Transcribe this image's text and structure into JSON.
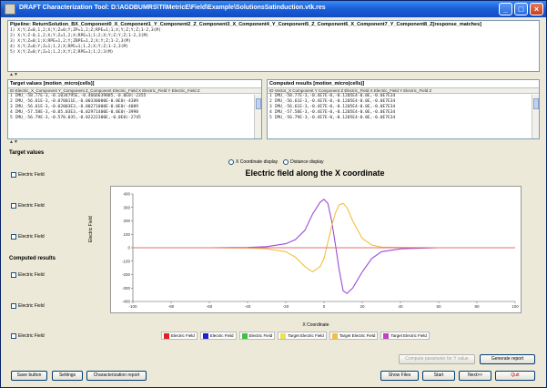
{
  "window": {
    "title": "DRAFT Characterization Tool: D:\\AGDBUMRS\\TI\\MetricE\\Field\\Example\\SolutionsSatinduction.vtk.res",
    "minimize": "_",
    "maximize": "□",
    "close": "×"
  },
  "pipeline": {
    "header": "Pipeline: ReturnSolution_BX_Component0_X_Component1_Y_Component2_Z_Component3_X_Component4_Y_Component5_Z_Component6_X_Component7_Y_Component8_Z[response_matches]",
    "rows": [
      "1) X;Y;Z=0,1,2;X;Y;Z=0;Y;ZP=1,2;Z;RPE=1;1;X;Y;Z;Y;Z;1-2,3(M)",
      "2) X;Y;Z-0,1,2;X;Y;Z=1,2;X;RPE=1;1;2;X;Y;Z;Y;Z;1-2,3(M)",
      "3) X;Y;Z=0;1;X;RPE=1,2;Y;ZBPE=1,2;X;Y;Z;1-2,3(M)",
      "4) X;Y;Z=0;Y;Z=1;1,2;X;RPE=1;1,2;X;Y;Z;1-2,3(M)",
      "5) X;Y;Z=0;Y;Z=1;1,2;X;Y;Z;RPE=1;1;2;3(M)"
    ]
  },
  "target_values": {
    "header": "Target values [motion_micro(cells)]",
    "subheader": "ID Electric_X_Component Y_Component Z_Component Electric_Field X Electric_Field Y Electric_Field Z",
    "rows": [
      "1 IMU_-58.77E-3,-0.1034795E,-0.4666639885,-0.0E0(-2355",
      "2 IMU_-56.61E-3,-0.070011E,-0.00330000E-0.0E0(-4389",
      "3 IMU_-56.61E-3,-0.02003E3,-0.00271000E-0.0E0(-4089",
      "4 IMU_-57.58E-3,-0.05.03E3,-0.02971400E-0.0E0(-3998",
      "5 IMU_-56.79E-3,-0.570.035,-0.02222300E,-0.0E0(-2745"
    ]
  },
  "computed_results": {
    "header": "Computed results [motion_micro(cells)]",
    "subheader": "ID Vector_X Component Y Component Z Electric_Field X Electric_Field Y Electric_Field Z",
    "rows": [
      "1 IMU_-58.77E-3,-0.4E7E-0,-0.1205E4-0.0E,-0.0E7E34",
      "2 IMU_-56.61E-3,-0.4E7E-0,-0.1205E4-0.0E,-0.0E7E34",
      "3 IMU_-56.61E-3,-0.4E7E-0,-0.1205E4-0.0E,-0.0E7E34",
      "4 IMU_-57.58E-3,-0.4E7E-0,-0.1205E4-0.0E,-0.0E7E34",
      "5 IMU_-56.79E-3,-0.4E7E-0,-0.1205E4-0.0E,-0.0E7E34"
    ]
  },
  "splitters": {
    "first": "▲▼",
    "second": "▲▼"
  },
  "left_panel": {
    "target_header": "Target values",
    "computed_header": "Computed results",
    "target_checks": [
      "Electric Field",
      "Electric Field",
      "Electric Field"
    ],
    "computed_checks": [
      "Electric Field",
      "Electric Field",
      "Electric Field"
    ]
  },
  "radio": {
    "option1": "X Coordinate display",
    "option2": "Distance display"
  },
  "chart_data": {
    "type": "line",
    "title": "Electric field along the X coordinate",
    "xlabel": "X Coordinate",
    "ylabel": "Electric Field",
    "xlim": [
      -100,
      100
    ],
    "ylim": [
      -400,
      400
    ],
    "x_ticks": [
      -100,
      -80,
      -60,
      -40,
      -20,
      0,
      20,
      40,
      60,
      80,
      100
    ],
    "y_ticks": [
      400,
      300,
      200,
      100,
      0,
      -100,
      -200,
      -300,
      -400
    ],
    "grid": false,
    "legend_position": "bottom",
    "series": [
      {
        "name": "Electric Field",
        "color": "#9b4cd9",
        "x": [
          -100,
          -60,
          -40,
          -30,
          -20,
          -15,
          -10,
          -6,
          -2,
          0,
          2,
          4,
          6,
          8,
          10,
          12,
          15,
          20,
          25,
          30,
          40,
          60,
          100
        ],
        "y": [
          0,
          0,
          2,
          8,
          30,
          60,
          130,
          250,
          340,
          360,
          330,
          200,
          20,
          -170,
          -320,
          -340,
          -300,
          -180,
          -80,
          -30,
          -8,
          0,
          0
        ]
      },
      {
        "name": "Target Electric Field",
        "color": "#f0c040",
        "x": [
          -100,
          -60,
          -40,
          -30,
          -20,
          -15,
          -10,
          -6,
          -2,
          0,
          2,
          4,
          6,
          8,
          10,
          12,
          15,
          20,
          25,
          30,
          40,
          60,
          100
        ],
        "y": [
          0,
          0,
          -2,
          -8,
          -30,
          -70,
          -140,
          -180,
          -140,
          -80,
          40,
          160,
          260,
          320,
          330,
          300,
          200,
          70,
          20,
          5,
          2,
          0,
          0
        ]
      },
      {
        "name": "Electric Field",
        "color": "#e86f6f",
        "x": [
          -100,
          -40,
          -20,
          0,
          20,
          40,
          100
        ],
        "y": [
          0,
          0,
          0,
          0,
          0,
          0,
          0
        ]
      }
    ],
    "legend_entries": [
      {
        "label": "Electric Field",
        "color": "#e02020"
      },
      {
        "label": "Electric Field",
        "color": "#2020d0"
      },
      {
        "label": "Electric Field",
        "color": "#40c040"
      },
      {
        "label": "Target Electric Field",
        "color": "#f0e050"
      },
      {
        "label": "Target Electric Field",
        "color": "#f0c040"
      },
      {
        "label": "Target Electric Field",
        "color": "#c040c0"
      }
    ]
  },
  "buttons": {
    "generate_report": "Generate report",
    "disabled_hint": "Compute parameter for Y value",
    "save_button": "Save button",
    "settings": "Settings",
    "characterization_report": "Characterization report",
    "show_files": "Show Files",
    "start": "Start",
    "next": "Next>>",
    "quit": "Quit"
  }
}
